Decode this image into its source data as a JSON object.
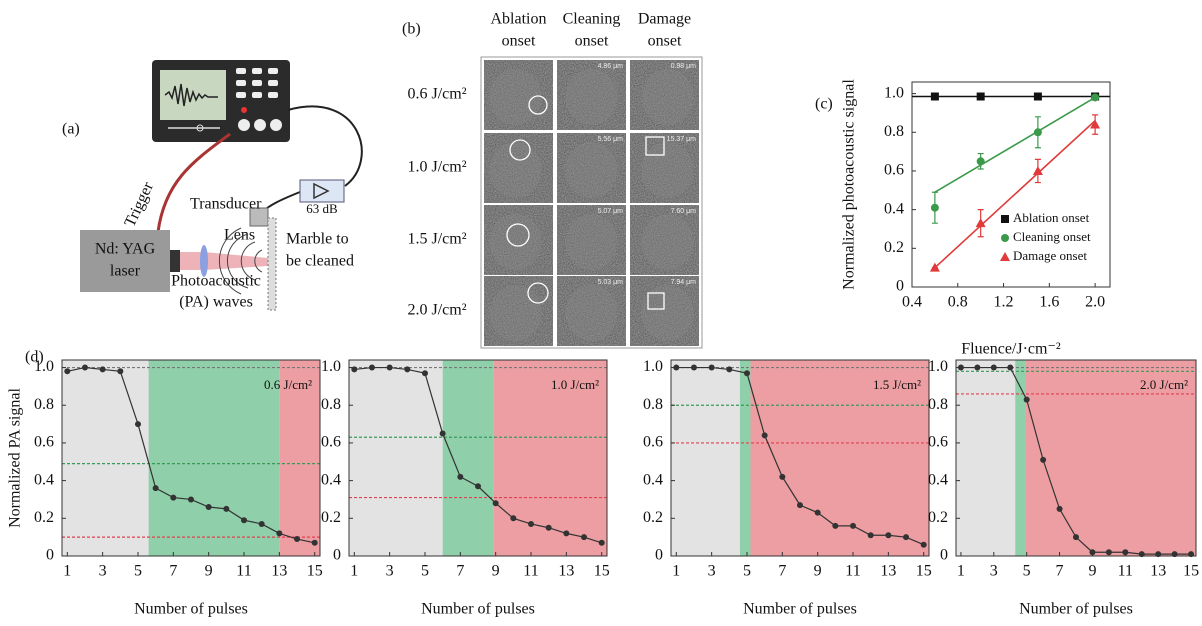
{
  "panel_a": {
    "label": "(a)",
    "trigger": "Trigger",
    "transducer": "Transducer",
    "amplifier": "63 dB",
    "laser": [
      "Nd: YAG",
      "laser"
    ],
    "lens": "Lens",
    "target": [
      "Marble to",
      "be cleaned"
    ],
    "waves": [
      "Photoacoustic",
      "(PA) waves"
    ]
  },
  "panel_b": {
    "label": "(b)",
    "columns": [
      [
        "Ablation",
        "onset"
      ],
      [
        "Cleaning",
        "onset"
      ],
      [
        "Damage",
        "onset"
      ]
    ],
    "rows": [
      "0.6 J/cm²",
      "1.0 J/cm²",
      "1.5 J/cm²",
      "2.0 J/cm²"
    ],
    "scale_labels": [
      [
        "4.86 μm",
        "0.98 μm"
      ],
      [
        "5.56 μm",
        "15.37 μm"
      ],
      [
        "5.07 μm",
        "7.60 μm"
      ],
      [
        "5.03 μm",
        "7.94 μm"
      ]
    ]
  },
  "panel_c": {
    "label": "(c)"
  },
  "panel_d": {
    "label": "(d)"
  },
  "chart_data": [
    {
      "type": "scatter",
      "xlabel": "Fluence/J·cm⁻²",
      "ylabel": "Normalized photoacoustic signal",
      "x": [
        0.6,
        1.0,
        1.5,
        2.0
      ],
      "series": [
        {
          "name": "Ablation onset",
          "color": "#111111",
          "marker": "square",
          "values": [
            0.985,
            0.985,
            0.985,
            0.985
          ],
          "fit": {
            "x": [
              0.4,
              2.13
            ],
            "y": [
              0.985,
              0.985
            ]
          }
        },
        {
          "name": "Cleaning onset",
          "color": "#3a9a4a",
          "marker": "circle",
          "values": [
            0.41,
            0.65,
            0.8,
            0.98
          ],
          "errors": [
            0.08,
            0.04,
            0.08,
            0.01
          ],
          "fit": {
            "x": [
              0.6,
              2.0
            ],
            "y": [
              0.49,
              0.98
            ]
          }
        },
        {
          "name": "Damage onset",
          "color": "#e03a3a",
          "marker": "triangle",
          "values": [
            0.1,
            0.33,
            0.6,
            0.84
          ],
          "errors": [
            0,
            0.07,
            0.06,
            0.05
          ],
          "fit": {
            "x": [
              0.6,
              2.0
            ],
            "y": [
              0.1,
              0.86
            ]
          }
        }
      ],
      "xlim": [
        0.4,
        2.13
      ],
      "ylim": [
        0,
        1.06
      ],
      "xticks": [
        0.4,
        0.8,
        1.2,
        1.6,
        {
          "value": 2,
          "label": "2.0"
        }
      ],
      "yticks": [
        0,
        0.2,
        0.4,
        0.6,
        0.8,
        {
          "value": 1,
          "label": "1.0"
        }
      ],
      "legend": "lower right"
    },
    {
      "type": "line",
      "annotation": "0.6 J/cm²",
      "ylabel": "Normalized PA signal",
      "xlabel": "Number of pulses",
      "x": [
        1,
        2,
        3,
        4,
        5,
        6,
        7,
        8,
        9,
        10,
        11,
        12,
        13,
        14,
        15
      ],
      "values": [
        0.98,
        1.0,
        0.99,
        0.98,
        0.7,
        0.36,
        0.31,
        0.3,
        0.26,
        0.25,
        0.19,
        0.17,
        0.12,
        0.09,
        0.07
      ],
      "color": "#333333",
      "regions": [
        {
          "from": 0.7,
          "to": 5.6,
          "color": "#e3e3e3"
        },
        {
          "from": 5.6,
          "to": 13.0,
          "color": "#8fcfaa"
        },
        {
          "from": 13.0,
          "to": 15.3,
          "color": "#ec9ea2"
        }
      ],
      "thresholds": [
        {
          "value": 1.0,
          "color": "#777777"
        },
        {
          "value": 0.49,
          "color": "#3a9a5a"
        },
        {
          "value": 0.1,
          "color": "#e04050"
        }
      ],
      "xlim": [
        0.7,
        15.3
      ],
      "ylim": [
        0,
        1.04
      ],
      "xticks": [
        1,
        3,
        5,
        7,
        9,
        11,
        13,
        15
      ],
      "yticks": [
        0,
        0.2,
        0.4,
        0.6,
        0.8,
        {
          "value": 1,
          "label": "1.0"
        }
      ]
    },
    {
      "type": "line",
      "annotation": "1.0 J/cm²",
      "xlabel": "Number of pulses",
      "x": [
        1,
        2,
        3,
        4,
        5,
        6,
        7,
        8,
        9,
        10,
        11,
        12,
        13,
        14,
        15
      ],
      "values": [
        0.99,
        1.0,
        1.0,
        0.99,
        0.97,
        0.65,
        0.42,
        0.37,
        0.28,
        0.2,
        0.17,
        0.15,
        0.12,
        0.1,
        0.07
      ],
      "color": "#333333",
      "regions": [
        {
          "from": 0.7,
          "to": 6.0,
          "color": "#e3e3e3"
        },
        {
          "from": 6.0,
          "to": 8.9,
          "color": "#8fcfaa"
        },
        {
          "from": 8.9,
          "to": 15.3,
          "color": "#ec9ea2"
        }
      ],
      "thresholds": [
        {
          "value": 1.0,
          "color": "#777777"
        },
        {
          "value": 0.63,
          "color": "#3a9a5a"
        },
        {
          "value": 0.31,
          "color": "#e04050"
        }
      ],
      "xlim": [
        0.7,
        15.3
      ],
      "ylim": [
        0,
        1.04
      ],
      "xticks": [
        1,
        3,
        5,
        7,
        9,
        11,
        13,
        15
      ],
      "yticks": [
        0,
        0.2,
        0.4,
        0.6,
        0.8,
        {
          "value": 1,
          "label": "1.0"
        }
      ]
    },
    {
      "type": "line",
      "annotation": "1.5 J/cm²",
      "xlabel": "Number of pulses",
      "x": [
        1,
        2,
        3,
        4,
        5,
        6,
        7,
        8,
        9,
        10,
        11,
        12,
        13,
        14,
        15
      ],
      "values": [
        1.0,
        1.0,
        1.0,
        0.99,
        0.97,
        0.64,
        0.42,
        0.27,
        0.23,
        0.16,
        0.16,
        0.11,
        0.11,
        0.1,
        0.06
      ],
      "color": "#333333",
      "regions": [
        {
          "from": 0.7,
          "to": 4.6,
          "color": "#e3e3e3"
        },
        {
          "from": 4.6,
          "to": 5.2,
          "color": "#8fcfaa"
        },
        {
          "from": 5.2,
          "to": 15.3,
          "color": "#ec9ea2"
        }
      ],
      "thresholds": [
        {
          "value": 1.0,
          "color": "#777777"
        },
        {
          "value": 0.8,
          "color": "#3a9a5a"
        },
        {
          "value": 0.6,
          "color": "#e04050"
        }
      ],
      "xlim": [
        0.7,
        15.3
      ],
      "ylim": [
        0,
        1.04
      ],
      "xticks": [
        1,
        3,
        5,
        7,
        9,
        11,
        13,
        15
      ],
      "yticks": [
        0,
        0.2,
        0.4,
        0.6,
        0.8,
        {
          "value": 1,
          "label": "1.0"
        }
      ]
    },
    {
      "type": "line",
      "annotation": "2.0 J/cm²",
      "xlabel": "Number of pulses",
      "x": [
        1,
        2,
        3,
        4,
        5,
        6,
        7,
        8,
        9,
        10,
        11,
        12,
        13,
        14,
        15
      ],
      "values": [
        1.0,
        1.0,
        1.0,
        1.0,
        0.83,
        0.51,
        0.25,
        0.1,
        0.02,
        0.02,
        0.02,
        0.01,
        0.01,
        0.01,
        0.01
      ],
      "color": "#333333",
      "regions": [
        {
          "from": 0.7,
          "to": 4.3,
          "color": "#e3e3e3"
        },
        {
          "from": 4.3,
          "to": 4.9,
          "color": "#8fcfaa"
        },
        {
          "from": 4.9,
          "to": 15.3,
          "color": "#ec9ea2"
        }
      ],
      "thresholds": [
        {
          "value": 1.0,
          "color": "#777777"
        },
        {
          "value": 0.98,
          "color": "#3a9a5a"
        },
        {
          "value": 0.86,
          "color": "#e04050"
        }
      ],
      "xlim": [
        0.7,
        15.3
      ],
      "ylim": [
        0,
        1.04
      ],
      "xticks": [
        1,
        3,
        5,
        7,
        9,
        11,
        13,
        15
      ],
      "yticks": [
        0,
        0.2,
        0.4,
        0.6,
        0.8,
        {
          "value": 1,
          "label": "1.0"
        }
      ]
    }
  ]
}
